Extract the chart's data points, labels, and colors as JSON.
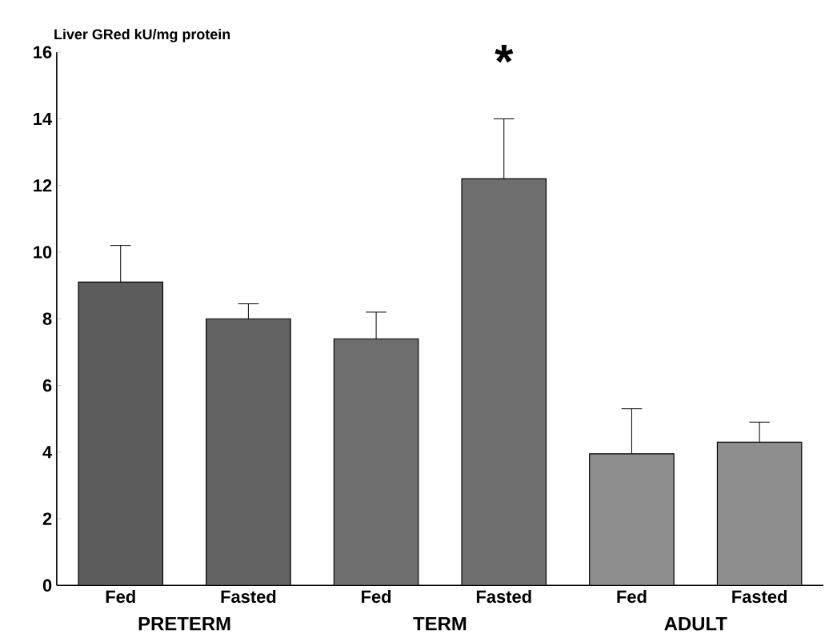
{
  "chart_data": {
    "type": "bar",
    "ylabel": "Liver GRed kU/mg protein",
    "categories": [
      "Fed",
      "Fasted",
      "Fed",
      "Fasted",
      "Fed",
      "Fasted"
    ],
    "values": [
      9.1,
      8.0,
      7.4,
      12.2,
      3.95,
      4.3
    ],
    "errors": [
      [
        9.1,
        10.2
      ],
      [
        8.0,
        8.45
      ],
      [
        7.4,
        8.2
      ],
      [
        12.2,
        14.0
      ],
      [
        3.95,
        5.3
      ],
      [
        4.3,
        4.9
      ]
    ],
    "colors": [
      "#5c5c5c",
      "#636363",
      "#6e6e6e",
      "#6e6e6e",
      "#8e8e8e",
      "#8e8e8e"
    ],
    "ylim": [
      0,
      16
    ],
    "yticks": [
      0,
      2,
      4,
      6,
      8,
      10,
      12,
      14,
      16
    ],
    "annotations": [
      "PRETERM",
      "TERM",
      "ADULT",
      "*"
    ]
  }
}
